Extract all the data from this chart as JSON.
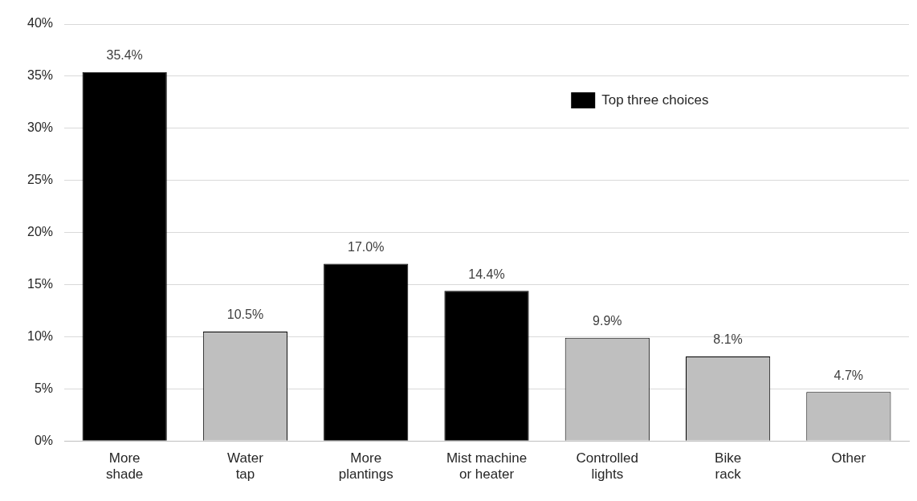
{
  "chart_data": {
    "type": "bar",
    "categories": [
      "More\nshade",
      "Water\ntap",
      "More\nplantings",
      "Mist machine\nor heater",
      "Controlled\nlights",
      "Bike\nrack",
      "Other"
    ],
    "series": [
      {
        "name": "Top three choices",
        "color": "#000000",
        "values": [
          35.4,
          null,
          17.0,
          14.4,
          null,
          null,
          null
        ],
        "value_labels": [
          "35.4%",
          null,
          "17.0%",
          "14.4%",
          null,
          null,
          null
        ]
      },
      {
        "color": "#bfbfbf",
        "values": [
          null,
          10.5,
          null,
          null,
          9.9,
          8.1,
          4.7
        ],
        "value_labels": [
          null,
          "10.5%",
          null,
          null,
          "9.9%",
          "8.1%",
          "4.7%"
        ]
      }
    ],
    "ylim": [
      0,
      40
    ],
    "yticks": [
      {
        "value": 0,
        "label": "0%"
      },
      {
        "value": 5,
        "label": "5%"
      },
      {
        "value": 10,
        "label": "10%"
      },
      {
        "value": 15,
        "label": "15%"
      },
      {
        "value": 20,
        "label": "20%"
      },
      {
        "value": 25,
        "label": "25%"
      },
      {
        "value": 30,
        "label": "30%"
      },
      {
        "value": 35,
        "label": "35%"
      },
      {
        "value": 40,
        "label": "40%"
      }
    ],
    "grid": "y",
    "legend": "top right"
  }
}
